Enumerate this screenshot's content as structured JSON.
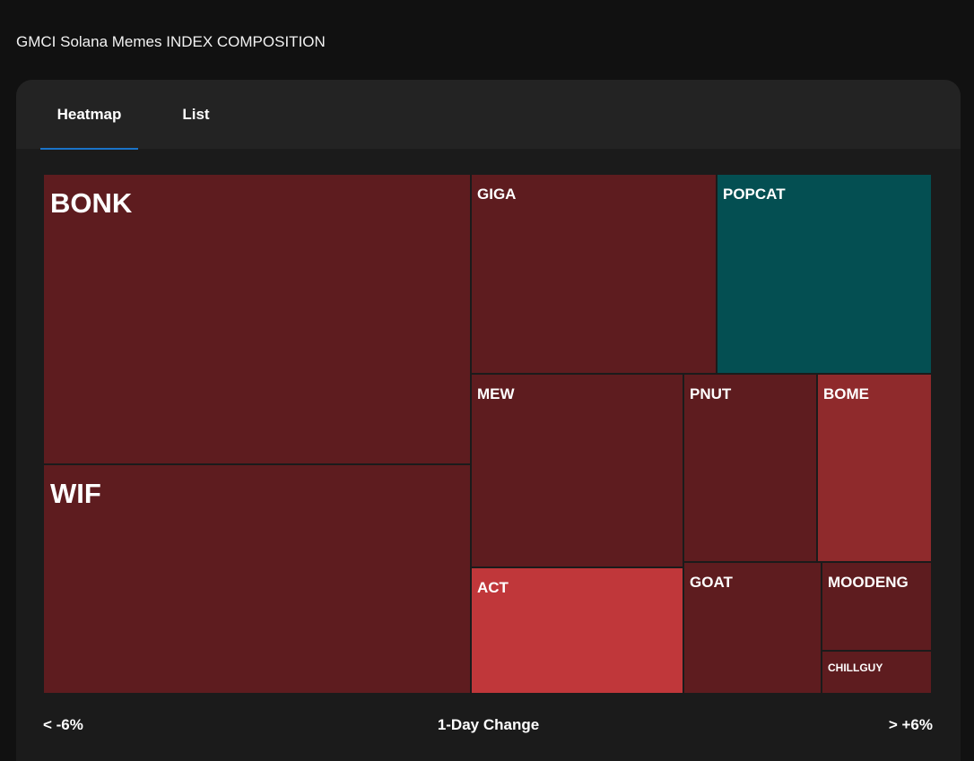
{
  "page": {
    "title": "GMCI Solana Memes INDEX COMPOSITION"
  },
  "tabs": [
    {
      "label": "Heatmap",
      "active": true
    },
    {
      "label": "List",
      "active": false
    }
  ],
  "heatmap": {
    "colors": {
      "strong_negative": "#c0373a",
      "negative": "#8f2a2c",
      "mild_negative": "#5e1c1f",
      "positive": "#044f52",
      "tab_indicator": "#1a73c8"
    },
    "tiles": [
      {
        "symbol": "BONK",
        "color": "#5e1c1f"
      },
      {
        "symbol": "WIF",
        "color": "#5e1c1f"
      },
      {
        "symbol": "GIGA",
        "color": "#5e1c1f"
      },
      {
        "symbol": "POPCAT",
        "color": "#044f52"
      },
      {
        "symbol": "MEW",
        "color": "#5e1c1f"
      },
      {
        "symbol": "PNUT",
        "color": "#5e1c1f"
      },
      {
        "symbol": "BOME",
        "color": "#8f2a2c"
      },
      {
        "symbol": "ACT",
        "color": "#c0373a"
      },
      {
        "symbol": "GOAT",
        "color": "#5e1c1f"
      },
      {
        "symbol": "MOODENG",
        "color": "#5e1c1f"
      },
      {
        "symbol": "CHILLGUY",
        "color": "#5e1c1f"
      }
    ]
  },
  "legend": {
    "min_label": "< -6%",
    "title": "1-Day Change",
    "max_label": "> +6%"
  }
}
